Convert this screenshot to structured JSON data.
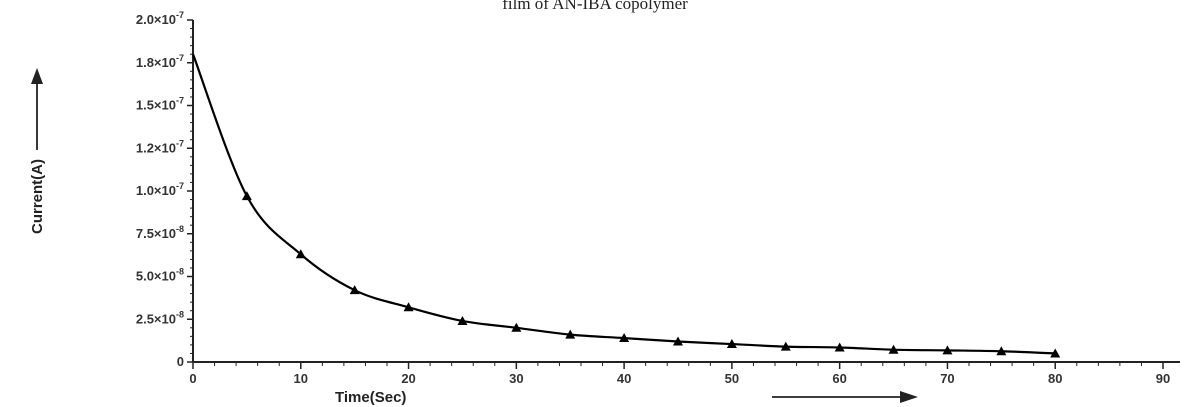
{
  "chart_data": {
    "type": "line",
    "title": "film of AN-IBA copolymer",
    "xlabel": "Time(Sec)",
    "ylabel": "Current(A)",
    "xlim": [
      0,
      90
    ],
    "ylim": [
      0,
      2e-07
    ],
    "x_ticks": [
      0,
      10,
      20,
      30,
      40,
      50,
      60,
      70,
      80,
      90
    ],
    "x_tick_labels": [
      "0",
      "10",
      "20",
      "30",
      "40",
      "50",
      "60",
      "70",
      "80",
      "90"
    ],
    "y_ticks": [
      0,
      2.5e-08,
      5e-08,
      7.5e-08,
      1e-07,
      1.25e-07,
      1.5e-07,
      1.75e-07,
      2e-07
    ],
    "y_tick_labels": [
      {
        "base": "0",
        "exp": ""
      },
      {
        "base": "2.5×10",
        "exp": "-8"
      },
      {
        "base": "5.0×10",
        "exp": "-8"
      },
      {
        "base": "7.5×10",
        "exp": "-8"
      },
      {
        "base": "1.0×10",
        "exp": "-7"
      },
      {
        "base": "1.2×10",
        "exp": "-7"
      },
      {
        "base": "1.5×10",
        "exp": "-7"
      },
      {
        "base": "1.8×10",
        "exp": "-7"
      },
      {
        "base": "2.0×10",
        "exp": "-7"
      }
    ],
    "grid": false,
    "series": [
      {
        "x": [
          0,
          5,
          10,
          15,
          20,
          25,
          30,
          35,
          40,
          45,
          50,
          55,
          60,
          65,
          70,
          75,
          80
        ],
        "y": [
          1.8e-07,
          9.7e-08,
          6.3e-08,
          4.2e-08,
          3.2e-08,
          2.4e-08,
          2e-08,
          1.6e-08,
          1.4e-08,
          1.2e-08,
          1.05e-08,
          9e-09,
          8.5e-09,
          7.2e-09,
          6.8e-09,
          6.3e-09,
          5e-09
        ],
        "marker": "triangle",
        "color": "#000000"
      }
    ]
  }
}
